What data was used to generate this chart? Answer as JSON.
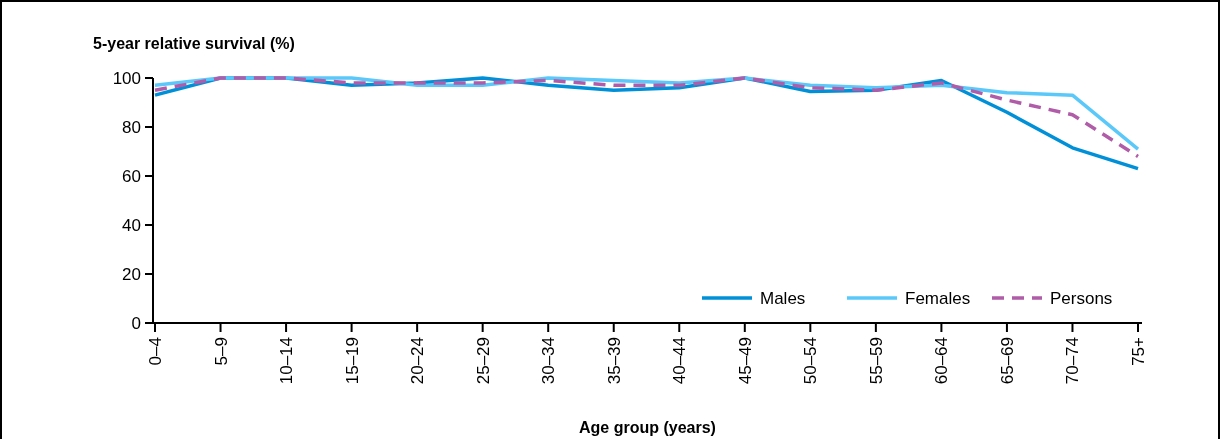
{
  "chart_data": {
    "type": "line",
    "title": "5-year relative survival (%)",
    "xlabel": "Age group (years)",
    "categories": [
      "0–4",
      "5–9",
      "10–14",
      "15–19",
      "20–24",
      "25–29",
      "30–34",
      "35–39",
      "40–44",
      "45–49",
      "50–54",
      "55–59",
      "60–64",
      "65–69",
      "70–74",
      "75+"
    ],
    "series": [
      {
        "name": "Males",
        "color": "#0090d8",
        "line_style": "solid",
        "values": [
          93,
          100,
          100,
          97,
          98,
          100,
          97,
          95,
          96,
          100,
          94.5,
          95,
          99,
          86,
          71.5,
          63
        ]
      },
      {
        "name": "Females",
        "color": "#5bc8fa",
        "line_style": "solid",
        "values": [
          97,
          100,
          100,
          100,
          97,
          97,
          100,
          99,
          98,
          100,
          97,
          96,
          97,
          94,
          93,
          71
        ]
      },
      {
        "name": "Persons",
        "color": "#b05ca8",
        "line_style": "dashed",
        "values": [
          95,
          100,
          100,
          98,
          98,
          98,
          99,
          97,
          97,
          100,
          96,
          95,
          98,
          91,
          85,
          68
        ]
      }
    ],
    "ylim": [
      0,
      100
    ],
    "yticks": [
      0,
      20,
      40,
      60,
      80,
      100
    ],
    "grid": false,
    "legend": "bottom right",
    "marker": "none"
  }
}
